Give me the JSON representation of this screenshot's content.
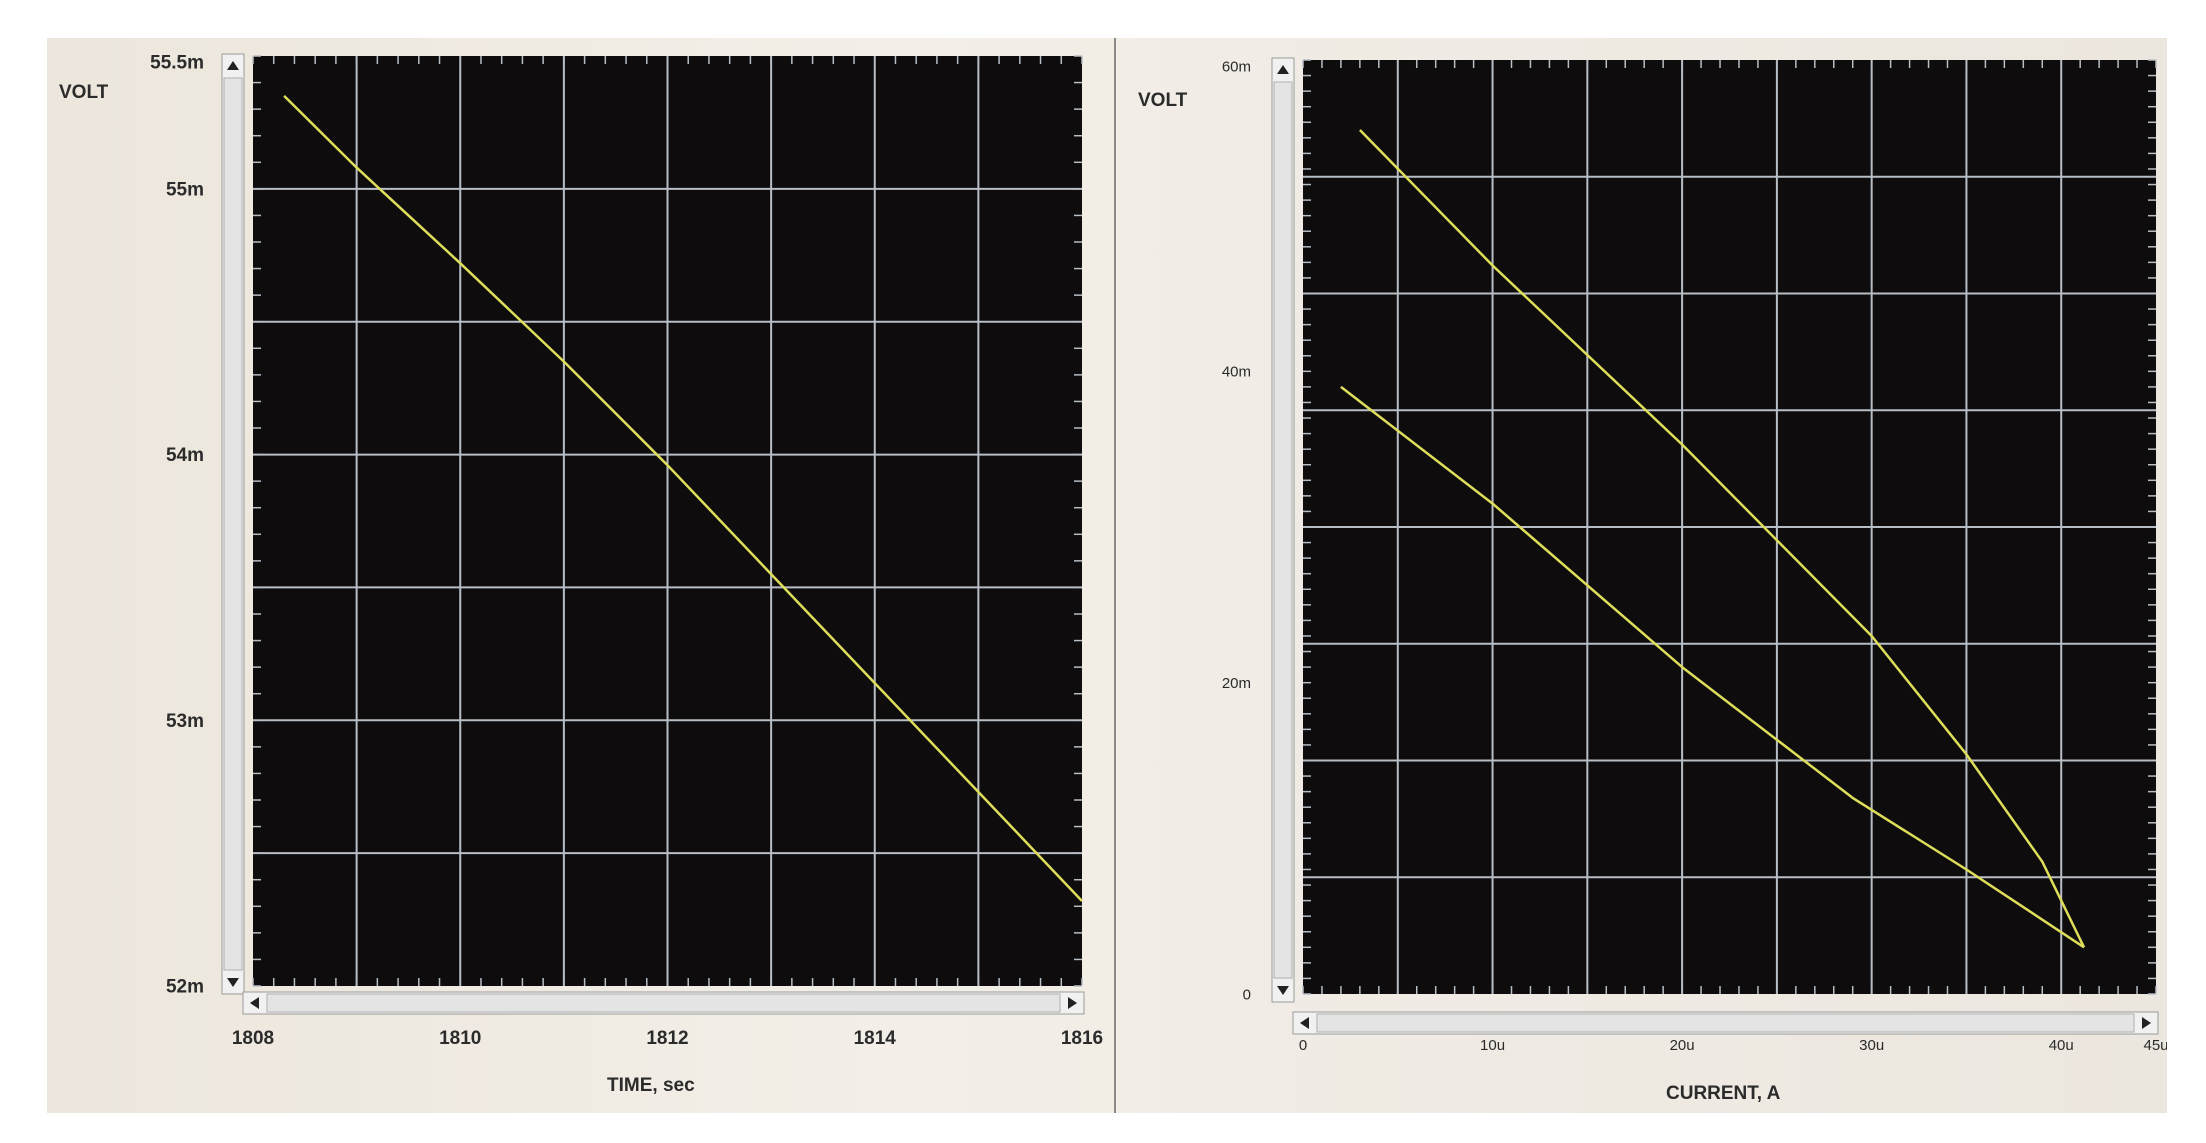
{
  "chart_data": [
    {
      "type": "line",
      "ylabel": "VOLT",
      "xlabel": "TIME, sec",
      "xlim": [
        1808,
        1816
      ],
      "ylim": [
        52,
        55.5
      ],
      "x_ticks": [
        "1808",
        "1810",
        "1812",
        "1814",
        "1816"
      ],
      "y_ticks": [
        "52m",
        "53m",
        "54m",
        "55m",
        "55.5m"
      ],
      "grid": true,
      "series": [
        {
          "x": [
            1808.3,
            1809,
            1810,
            1811,
            1812,
            1813,
            1814,
            1815,
            1816
          ],
          "y": [
            55.35,
            55.08,
            54.72,
            54.35,
            53.96,
            53.55,
            53.14,
            52.73,
            52.32
          ]
        }
      ],
      "colors": {
        "background": "#0e0c0c",
        "grid": "#b8bec6",
        "line": "#dede5a"
      }
    },
    {
      "type": "line",
      "ylabel": "VOLT",
      "xlabel": "CURRENT, A",
      "xlim": [
        0,
        45
      ],
      "ylim": [
        0,
        60
      ],
      "x_ticks": [
        "0",
        "10u",
        "20u",
        "30u",
        "40u",
        "45u"
      ],
      "y_ticks": [
        "0",
        "20m",
        "40m",
        "60m"
      ],
      "grid": true,
      "series": [
        {
          "x": [
            3,
            10,
            20,
            30,
            35,
            39,
            41.2
          ],
          "y": [
            55.5,
            46.8,
            35.3,
            23.0,
            15.4,
            8.5,
            3.0
          ]
        },
        {
          "x": [
            2,
            10,
            20,
            29,
            35,
            41.2
          ],
          "y": [
            39.0,
            31.5,
            21.0,
            12.6,
            8.0,
            3.0
          ]
        }
      ],
      "colors": {
        "background": "#0e0c0c",
        "grid": "#b8bec6",
        "line": "#dede5a"
      }
    }
  ]
}
